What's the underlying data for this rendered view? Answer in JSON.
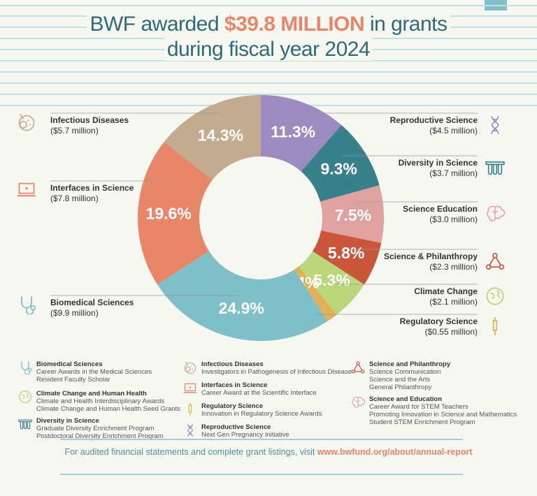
{
  "title": {
    "pre": "BWF awarded ",
    "highlight": "$39.8 MILLION",
    "post": " in grants",
    "line2": "during fiscal year 2024"
  },
  "chart_data": {
    "type": "pie",
    "title": "BWF awarded $39.8 MILLION in grants during fiscal year 2024",
    "slices": [
      {
        "name": "Reproductive Science",
        "amount": "($4.5 million)",
        "value": 11.3,
        "label": "11.3%",
        "color": "#9b8bc0",
        "side": "r"
      },
      {
        "name": "Diversity in Science",
        "amount": "($3.7 million)",
        "value": 9.3,
        "label": "9.3%",
        "color": "#38808a",
        "side": "r"
      },
      {
        "name": "Science Education",
        "amount": "($3.0 million)",
        "value": 7.5,
        "label": "7.5%",
        "color": "#e0a2a0",
        "side": "r"
      },
      {
        "name": "Science & Philanthropy",
        "amount": "($2.3 million)",
        "value": 5.8,
        "label": "5.8%",
        "color": "#c9553a",
        "side": "r"
      },
      {
        "name": "Climate Change",
        "amount": "($2.1 million)",
        "value": 5.3,
        "label": "5.3%",
        "color": "#bcd67c",
        "side": "r"
      },
      {
        "name": "Regulatory Science",
        "amount": "($0.55 million)",
        "value": 1.4,
        "label": "1.4%",
        "color": "#e2b155",
        "side": "r"
      },
      {
        "name": "Biomedical Sciences",
        "amount": "($9.9 million)",
        "value": 24.9,
        "label": "24.9%",
        "color": "#7fc0c8",
        "side": "l"
      },
      {
        "name": "Interfaces in Science",
        "amount": "($7.8 million)",
        "value": 19.6,
        "label": "19.6%",
        "color": "#e8866a",
        "side": "l"
      },
      {
        "name": "Infectious Diseases",
        "amount": "($5.7 million)",
        "value": 14.3,
        "label": "14.3%",
        "color": "#c2ab8f",
        "side": "l"
      }
    ]
  },
  "legend": [
    {
      "title": "Biomedical Sciences",
      "items": [
        "Career Awards in the Medical Sciences",
        "Resident Faculty Scholar"
      ],
      "icon": "stethoscope-icon",
      "color": "#7fc0c8"
    },
    {
      "title": "Climate Change and Human Health",
      "items": [
        "Climate and Health Interdisciplinary Awards",
        "Climate Change and Human Health Seed Grants"
      ],
      "icon": "globe-icon",
      "color": "#bcd67c"
    },
    {
      "title": "Diversity in Science",
      "items": [
        "Graduate Diversity Enrichment Program",
        "Postdoctoral Diversity Enrichment Program"
      ],
      "icon": "test-tubes-icon",
      "color": "#38808a"
    },
    {
      "title": "Infectious Diseases",
      "items": [
        "Investigators in Pathogenesis of Infectious Disease"
      ],
      "icon": "petri-dish-icon",
      "color": "#c2ab8f"
    },
    {
      "title": "Interfaces in Science",
      "items": [
        "Career Award at the Scientific Interface"
      ],
      "icon": "laptop-icon",
      "color": "#e8866a"
    },
    {
      "title": "Regulatory Science",
      "items": [
        "Innovation in Regulatory Science Awards"
      ],
      "icon": "syringe-icon",
      "color": "#e2b155"
    },
    {
      "title": "Reproductive Science",
      "items": [
        "Next Gen Pregnancy Initiative"
      ],
      "icon": "dna-icon",
      "color": "#9b8bc0"
    },
    {
      "title": "Science and Philanthropy",
      "items": [
        "Science Communication",
        "Science and the Arts",
        "General Philanthropy"
      ],
      "icon": "network-icon",
      "color": "#c9553a"
    },
    {
      "title": "Science and Education",
      "items": [
        "Career Award for STEM Teachers",
        "Promoting Innovation in Science and Mathematics",
        "Student STEM Enrichment Program"
      ],
      "icon": "brain-icon",
      "color": "#e0a2a0"
    }
  ],
  "footer": {
    "text": "For audited financial statements and complete grant listings, visit ",
    "link": "www.bwfund.org/about/annual-report"
  }
}
